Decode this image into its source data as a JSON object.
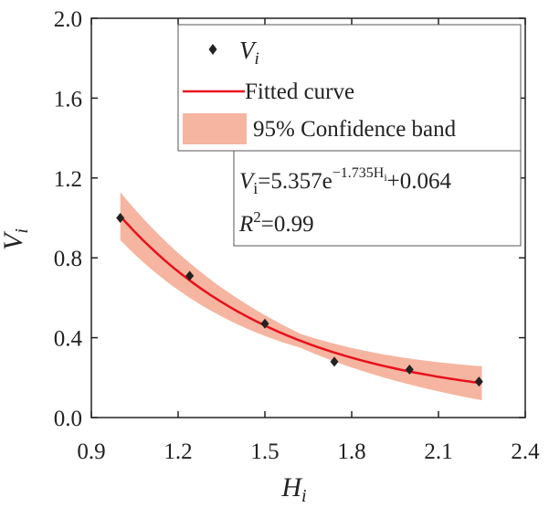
{
  "chart_data": {
    "type": "scatter",
    "title": "",
    "xlabel": {
      "base": "H",
      "sub": "i"
    },
    "ylabel": {
      "base": "V",
      "sub": "i"
    },
    "xlim": [
      0.9,
      2.4
    ],
    "ylim": [
      0.0,
      2.0
    ],
    "xticks": [
      0.9,
      1.2,
      1.5,
      1.8,
      2.1,
      2.4
    ],
    "yticks": [
      0.0,
      0.4,
      0.8,
      1.2,
      1.6,
      2.0
    ],
    "xtick_labels": [
      "0.9",
      "1.2",
      "1.5",
      "1.8",
      "2.1",
      "2.4"
    ],
    "ytick_labels": [
      "0.0",
      "0.4",
      "0.8",
      "1.2",
      "1.6",
      "2.0"
    ],
    "series": [
      {
        "name": "Vi",
        "kind": "scatter",
        "x": [
          1.0,
          1.24,
          1.5,
          1.74,
          2.0,
          2.24
        ],
        "y": [
          1.0,
          0.71,
          0.47,
          0.28,
          0.24,
          0.18
        ]
      }
    ],
    "fit": {
      "a": 5.357,
      "b": -1.735,
      "c": 0.064,
      "x_range": [
        1.0,
        2.25
      ],
      "band_halfwidth_start": 0.12,
      "band_halfwidth_mid": 0.035,
      "band_halfwidth_end": 0.085
    },
    "legend": {
      "position": "top-right",
      "entries": [
        {
          "label_base": "V",
          "label_sub": "i",
          "marker": "diamond"
        },
        {
          "label": "Fitted curve",
          "marker": "line"
        },
        {
          "label": "95% Confidence band",
          "marker": "band"
        }
      ]
    },
    "annotation": {
      "eq_prefix": "V",
      "eq_sub": "i",
      "eq_main": "=5.357e",
      "eq_exp": "−1.735H",
      "eq_exp_sub": "i",
      "eq_tail": "+0.064",
      "r2_base": "R",
      "r2_sup": "2",
      "r2_value": "=0.99"
    },
    "colors": {
      "marker": "#222222",
      "fit": "#e8101c",
      "band": "#f5b5a0",
      "axis": "#222222"
    }
  }
}
